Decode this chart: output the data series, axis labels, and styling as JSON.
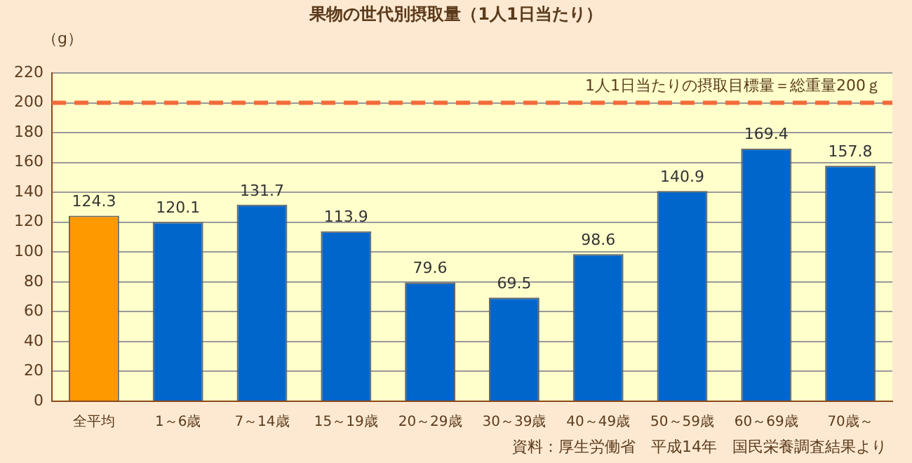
{
  "chart_data": {
    "type": "bar",
    "title": "果物の世代別摂取量（1人1日当たり）",
    "ylabel": "（g）",
    "categories": [
      "全平均",
      "1～6歳",
      "7～14歳",
      "15～19歳",
      "20～29歳",
      "30～39歳",
      "40～49歳",
      "50～59歳",
      "60～69歳",
      "70歳～"
    ],
    "values": [
      124.3,
      120.1,
      131.7,
      113.9,
      79.6,
      69.5,
      98.6,
      140.9,
      169.4,
      157.8
    ],
    "colors": [
      "#ff9900",
      "#0066cc",
      "#0066cc",
      "#0066cc",
      "#0066cc",
      "#0066cc",
      "#0066cc",
      "#0066cc",
      "#0066cc",
      "#0066cc"
    ],
    "ylim": [
      0,
      220
    ],
    "yticks": [
      0,
      20,
      40,
      60,
      80,
      100,
      120,
      140,
      160,
      180,
      200,
      220
    ],
    "grid": "y",
    "data_labels": true,
    "ref_lines": [
      {
        "axis": "y",
        "value": 200,
        "label": "1人1日当たりの摂取目標量＝総重量200ｇ",
        "color": "#f26b3a",
        "line_style": "dashed"
      }
    ],
    "annotations": [
      "資料：厚生労働省　平成14年　国民栄養調査結果より"
    ]
  }
}
